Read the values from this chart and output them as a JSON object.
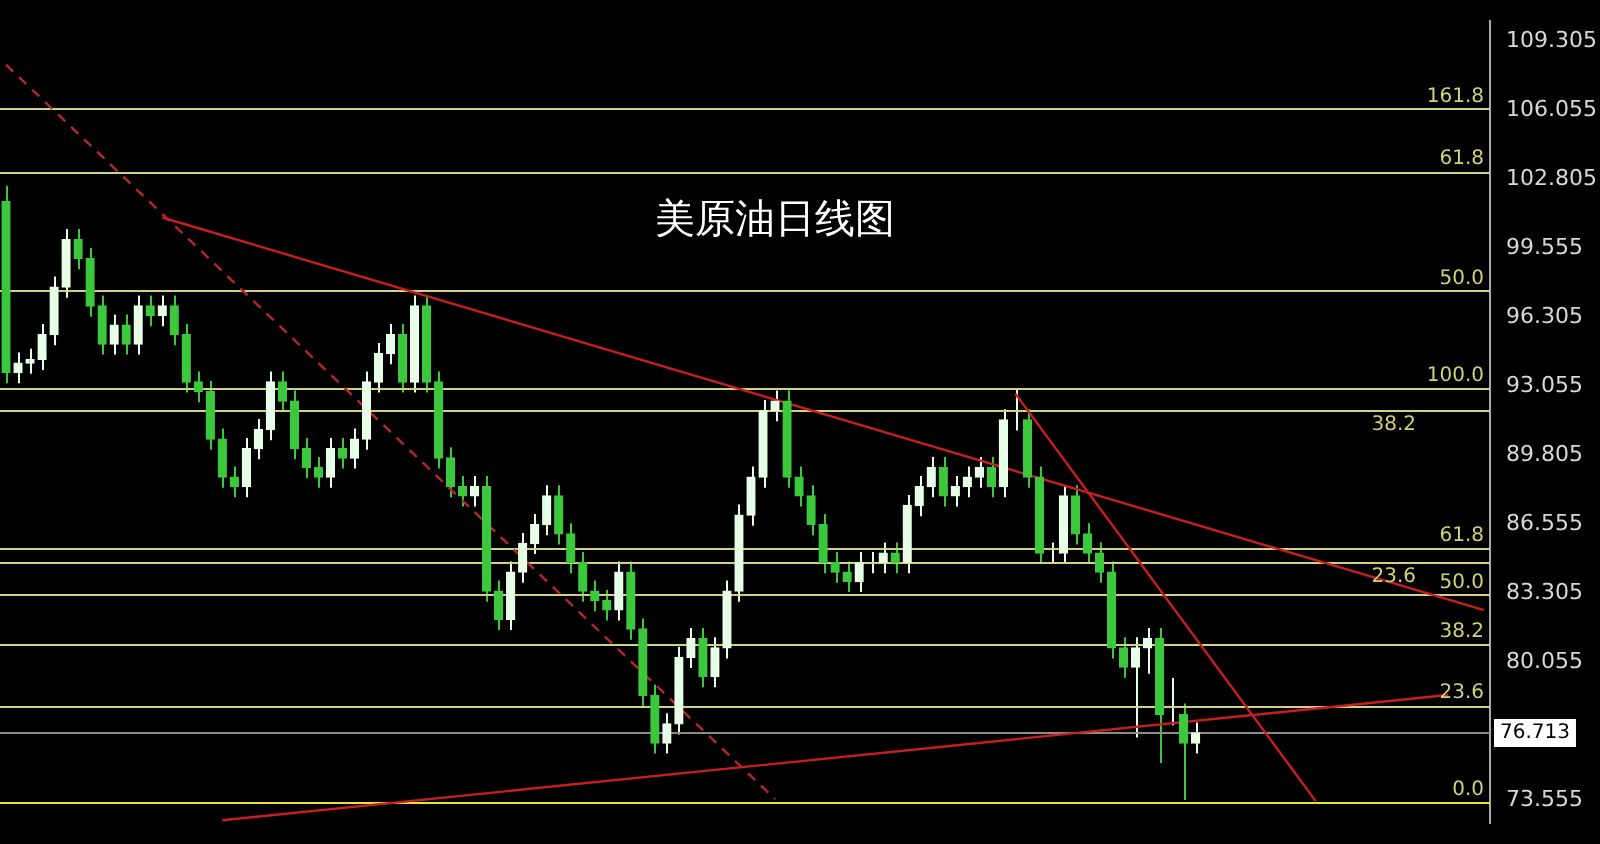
{
  "chart_data": {
    "type": "candlestick",
    "title": "美原油日线图",
    "categories": [
      null,
      null,
      null,
      null,
      null,
      null,
      null,
      null,
      null,
      null,
      null,
      null,
      null,
      null,
      null,
      null,
      null,
      null,
      null,
      null,
      null,
      null,
      null,
      null,
      null,
      null,
      null,
      null,
      null,
      null,
      null,
      null,
      null,
      null,
      null,
      null,
      null,
      null,
      null,
      null,
      null,
      null,
      null,
      null,
      null,
      null,
      null,
      null,
      null,
      null,
      null,
      null,
      null,
      null,
      null,
      null,
      null,
      null,
      null,
      null,
      null,
      null,
      null,
      null,
      null,
      null,
      null,
      null,
      null,
      null,
      null,
      null,
      null,
      null,
      null,
      null,
      null,
      null,
      null,
      null,
      null,
      null,
      null,
      null,
      null,
      null,
      null,
      null,
      null,
      null,
      null,
      null,
      null,
      null,
      null,
      null,
      null,
      null,
      null,
      null,
      null,
      null,
      null,
      null,
      null,
      null,
      null,
      null,
      null,
      null,
      null,
      null,
      null,
      null,
      null,
      null,
      null,
      null,
      null,
      null,
      null,
      null,
      null,
      null
    ],
    "ohlc": [
      [
        101.75,
        102.5,
        93.19,
        93.69
      ],
      [
        93.69,
        94.64,
        93.19,
        94.14
      ],
      [
        94.14,
        94.82,
        93.64,
        94.32
      ],
      [
        94.32,
        95.98,
        93.82,
        95.48
      ],
      [
        95.48,
        98.22,
        94.98,
        97.72
      ],
      [
        97.72,
        100.46,
        97.22,
        99.96
      ],
      [
        99.96,
        100.46,
        98.56,
        99.06
      ],
      [
        99.06,
        99.56,
        96.33,
        96.83
      ],
      [
        96.83,
        97.33,
        94.54,
        95.04
      ],
      [
        95.04,
        96.43,
        94.54,
        95.93
      ],
      [
        95.93,
        96.43,
        94.54,
        95.04
      ],
      [
        95.04,
        97.33,
        94.54,
        96.83
      ],
      [
        96.83,
        97.33,
        95.88,
        96.38
      ],
      [
        96.38,
        97.33,
        95.88,
        96.83
      ],
      [
        96.83,
        97.33,
        94.98,
        95.48
      ],
      [
        95.48,
        95.98,
        92.75,
        93.25
      ],
      [
        93.25,
        93.75,
        92.3,
        92.8
      ],
      [
        92.8,
        93.3,
        90.06,
        90.56
      ],
      [
        90.56,
        91.06,
        88.27,
        88.77
      ],
      [
        88.77,
        89.27,
        87.82,
        88.32
      ],
      [
        88.32,
        90.61,
        87.82,
        90.11
      ],
      [
        90.11,
        91.51,
        89.61,
        91.01
      ],
      [
        91.01,
        93.75,
        90.51,
        93.25
      ],
      [
        93.25,
        93.75,
        91.85,
        92.35
      ],
      [
        92.35,
        92.85,
        89.61,
        90.11
      ],
      [
        90.11,
        90.61,
        88.72,
        89.22
      ],
      [
        89.22,
        89.72,
        88.27,
        88.77
      ],
      [
        88.77,
        90.61,
        88.27,
        90.11
      ],
      [
        90.11,
        90.61,
        89.17,
        89.67
      ],
      [
        89.67,
        91.06,
        89.17,
        90.56
      ],
      [
        90.56,
        93.75,
        90.06,
        93.25
      ],
      [
        93.25,
        95.09,
        92.75,
        94.59
      ],
      [
        94.59,
        95.98,
        94.09,
        95.48
      ],
      [
        95.48,
        95.98,
        92.75,
        93.25
      ],
      [
        93.25,
        97.33,
        92.75,
        96.83
      ],
      [
        96.83,
        97.33,
        92.75,
        93.25
      ],
      [
        93.25,
        93.75,
        89.17,
        89.67
      ],
      [
        89.67,
        90.17,
        87.82,
        88.32
      ],
      [
        88.32,
        88.82,
        87.38,
        87.88
      ],
      [
        87.88,
        88.82,
        87.38,
        88.32
      ],
      [
        88.32,
        88.82,
        82.9,
        83.4
      ],
      [
        83.4,
        83.9,
        81.56,
        82.06
      ],
      [
        82.06,
        84.79,
        81.56,
        84.29
      ],
      [
        84.29,
        86.14,
        83.79,
        85.64
      ],
      [
        85.64,
        87.03,
        85.14,
        86.53
      ],
      [
        86.53,
        88.38,
        86.03,
        87.88
      ],
      [
        87.88,
        88.38,
        85.59,
        86.09
      ],
      [
        86.09,
        86.59,
        84.24,
        84.74
      ],
      [
        84.74,
        85.24,
        82.9,
        83.4
      ],
      [
        83.4,
        83.9,
        82.45,
        82.95
      ],
      [
        82.95,
        83.45,
        82.01,
        82.51
      ],
      [
        82.51,
        84.79,
        82.01,
        84.29
      ],
      [
        84.29,
        84.79,
        81.11,
        81.61
      ],
      [
        81.61,
        82.11,
        77.98,
        78.48
      ],
      [
        78.48,
        78.98,
        75.74,
        76.24
      ],
      [
        76.24,
        77.64,
        75.74,
        77.14
      ],
      [
        77.14,
        80.77,
        76.64,
        80.27
      ],
      [
        80.27,
        81.66,
        79.77,
        81.16
      ],
      [
        81.16,
        81.66,
        78.87,
        79.37
      ],
      [
        79.37,
        81.22,
        78.87,
        80.72
      ],
      [
        80.72,
        83.9,
        80.22,
        83.4
      ],
      [
        83.4,
        87.48,
        82.9,
        86.98
      ],
      [
        86.98,
        89.27,
        86.48,
        88.77
      ],
      [
        88.77,
        92.4,
        88.27,
        91.9
      ],
      [
        91.9,
        92.85,
        91.4,
        92.35
      ],
      [
        92.35,
        92.85,
        88.27,
        88.77
      ],
      [
        88.77,
        89.27,
        87.38,
        87.88
      ],
      [
        87.88,
        88.38,
        86.03,
        86.53
      ],
      [
        86.53,
        87.03,
        84.24,
        84.74
      ],
      [
        84.74,
        85.24,
        83.79,
        84.29
      ],
      [
        84.29,
        84.79,
        83.35,
        83.85
      ],
      [
        83.85,
        85.24,
        83.35,
        84.74
      ],
      [
        84.74,
        85.24,
        84.24,
        84.74
      ],
      [
        84.74,
        85.69,
        84.24,
        85.19
      ],
      [
        85.19,
        85.69,
        84.24,
        84.74
      ],
      [
        84.74,
        87.93,
        84.24,
        87.43
      ],
      [
        87.43,
        88.82,
        86.93,
        88.32
      ],
      [
        88.32,
        89.72,
        87.82,
        89.22
      ],
      [
        89.22,
        89.72,
        87.38,
        87.88
      ],
      [
        87.88,
        88.82,
        87.38,
        88.32
      ],
      [
        88.32,
        89.27,
        87.82,
        88.77
      ],
      [
        88.77,
        89.72,
        88.27,
        89.22
      ],
      [
        89.22,
        89.72,
        87.82,
        88.32
      ],
      [
        88.32,
        91.96,
        87.82,
        91.46
      ],
      [
        91.46,
        92.9,
        90.96,
        91.46
      ],
      [
        91.46,
        91.96,
        88.27,
        88.77
      ],
      [
        88.77,
        89.27,
        84.69,
        85.19
      ],
      [
        85.19,
        85.69,
        84.69,
        85.19
      ],
      [
        85.19,
        88.38,
        84.69,
        87.88
      ],
      [
        87.88,
        88.38,
        85.59,
        86.09
      ],
      [
        86.09,
        86.59,
        84.69,
        85.19
      ],
      [
        85.19,
        85.69,
        83.79,
        84.29
      ],
      [
        84.29,
        84.79,
        80.22,
        80.72
      ],
      [
        80.72,
        81.22,
        79.32,
        79.82
      ],
      [
        79.82,
        81.22,
        76.5,
        80.72
      ],
      [
        80.72,
        81.66,
        79.5,
        81.16
      ],
      [
        81.16,
        81.66,
        75.3,
        77.58
      ],
      [
        77.58,
        79.3,
        77.08,
        77.58
      ],
      [
        77.58,
        78.1,
        73.56,
        76.24
      ],
      [
        76.24,
        77.21,
        75.74,
        76.71
      ],
      null,
      null,
      null,
      null,
      null,
      null,
      null,
      null,
      null,
      null,
      null,
      null,
      null,
      null,
      null,
      null,
      null,
      null,
      null,
      null,
      null,
      null,
      null,
      null
    ],
    "colors": [
      "#3cc83c",
      "#e6ffe6",
      "#e6ffe6",
      "#e6ffe6",
      "#e6ffe6",
      "#e6ffe6",
      "#3cc83c",
      "#3cc83c",
      "#3cc83c",
      "#e6ffe6",
      "#3cc83c",
      "#e6ffe6",
      "#3cc83c",
      "#e6ffe6",
      "#3cc83c",
      "#3cc83c",
      "#3cc83c",
      "#3cc83c",
      "#3cc83c",
      "#3cc83c",
      "#e6ffe6",
      "#e6ffe6",
      "#e6ffe6",
      "#3cc83c",
      "#3cc83c",
      "#3cc83c",
      "#3cc83c",
      "#e6ffe6",
      "#3cc83c",
      "#e6ffe6",
      "#e6ffe6",
      "#e6ffe6",
      "#e6ffe6",
      "#3cc83c",
      "#e6ffe6",
      "#3cc83c",
      "#3cc83c",
      "#3cc83c",
      "#3cc83c",
      "#e6ffe6",
      "#3cc83c",
      "#3cc83c",
      "#e6ffe6",
      "#e6ffe6",
      "#e6ffe6",
      "#e6ffe6",
      "#3cc83c",
      "#3cc83c",
      "#3cc83c",
      "#3cc83c",
      "#3cc83c",
      "#e6ffe6",
      "#3cc83c",
      "#3cc83c",
      "#3cc83c",
      "#e6ffe6",
      "#e6ffe6",
      "#e6ffe6",
      "#3cc83c",
      "#e6ffe6",
      "#e6ffe6",
      "#e6ffe6",
      "#e6ffe6",
      "#e6ffe6",
      "#e6ffe6",
      "#3cc83c",
      "#3cc83c",
      "#3cc83c",
      "#3cc83c",
      "#3cc83c",
      "#3cc83c",
      "#e6ffe6",
      "#e6ffe6",
      "#e6ffe6",
      "#3cc83c",
      "#e6ffe6",
      "#e6ffe6",
      "#e6ffe6",
      "#3cc83c",
      "#e6ffe6",
      "#e6ffe6",
      "#e6ffe6",
      "#3cc83c",
      "#e6ffe6",
      "#e6ffe6",
      "#3cc83c",
      "#3cc83c",
      "#e6ffe6",
      "#e6ffe6",
      "#3cc83c",
      "#3cc83c",
      "#3cc83c",
      "#3cc83c",
      "#3cc83c",
      "#e6ffe6",
      "#e6ffe6",
      "#3cc83c",
      "#e6ffe6",
      "#3cc83c",
      "#e6ffe6",
      null,
      null,
      null,
      null,
      null,
      null,
      null,
      null,
      null,
      null,
      null,
      null,
      null,
      null,
      null,
      null,
      null,
      null,
      null,
      null,
      null,
      null,
      null,
      null
    ],
    "series": [
      {
        "type": "line",
        "color": "#c81e1e",
        "line_style": "solid",
        "values": [
          null,
          null,
          null,
          null,
          null,
          null,
          null,
          null,
          null,
          null,
          null,
          null,
          null,
          101.0,
          null,
          null,
          null,
          null,
          null,
          null,
          null,
          null,
          null,
          null,
          null,
          null,
          null,
          null,
          null,
          null,
          null,
          null,
          null,
          null,
          null,
          null,
          null,
          null,
          null,
          null,
          null,
          null,
          null,
          null,
          null,
          null,
          null,
          null,
          null,
          null,
          null,
          null,
          null,
          null,
          null,
          null,
          null,
          null,
          null,
          null,
          null,
          null,
          null,
          null,
          null,
          null,
          null,
          null,
          null,
          null,
          null,
          null,
          null,
          null,
          null,
          null,
          null,
          null,
          null,
          null,
          null,
          null,
          null,
          null,
          null,
          null,
          null,
          null,
          null,
          null,
          null,
          null,
          null,
          null,
          null,
          null,
          null,
          null,
          null,
          null,
          null,
          null,
          null,
          null,
          null,
          null,
          null,
          null,
          null,
          null,
          null,
          null,
          null,
          null,
          null,
          null,
          null,
          null,
          null,
          null,
          null,
          null,
          null,
          82.5
        ]
      },
      {
        "type": "line",
        "color": "#c81e1e",
        "line_style": "solid",
        "values": [
          null,
          null,
          null,
          null,
          null,
          null,
          null,
          null,
          null,
          null,
          null,
          null,
          null,
          null,
          null,
          null,
          null,
          null,
          null,
          null,
          null,
          null,
          null,
          null,
          null,
          null,
          null,
          null,
          null,
          null,
          null,
          null,
          null,
          null,
          null,
          null,
          null,
          null,
          null,
          null,
          null,
          null,
          null,
          null,
          null,
          null,
          null,
          null,
          null,
          null,
          null,
          null,
          null,
          null,
          null,
          null,
          null,
          null,
          null,
          null,
          null,
          null,
          null,
          null,
          null,
          null,
          null,
          null,
          null,
          null,
          null,
          null,
          null,
          null,
          null,
          null,
          null,
          null,
          null,
          null,
          null,
          null,
          null,
          null,
          92.7,
          null,
          null,
          null,
          null,
          null,
          null,
          null,
          null,
          null,
          null,
          null,
          null,
          null,
          null,
          null,
          null,
          null,
          null,
          null,
          null,
          null,
          null,
          null,
          null,
          73.5,
          null,
          null,
          null,
          null,
          null,
          null,
          null,
          null,
          null,
          null,
          null,
          null,
          null,
          null
        ]
      },
      {
        "type": "line",
        "color": "#c81e1e",
        "line_style": "solid",
        "values": [
          null,
          null,
          null,
          null,
          null,
          null,
          null,
          null,
          null,
          null,
          null,
          null,
          null,
          null,
          null,
          null,
          null,
          null,
          72.6,
          null,
          null,
          null,
          null,
          null,
          null,
          null,
          null,
          null,
          null,
          null,
          null,
          null,
          null,
          null,
          null,
          null,
          null,
          null,
          null,
          null,
          null,
          null,
          null,
          null,
          null,
          null,
          null,
          null,
          null,
          null,
          null,
          null,
          null,
          null,
          null,
          null,
          null,
          null,
          null,
          null,
          null,
          null,
          null,
          null,
          null,
          null,
          null,
          null,
          null,
          null,
          null,
          null,
          null,
          null,
          null,
          null,
          null,
          null,
          null,
          null,
          null,
          null,
          null,
          null,
          null,
          null,
          null,
          null,
          null,
          null,
          null,
          null,
          null,
          null,
          null,
          null,
          null,
          null,
          null,
          null,
          null,
          null,
          null,
          null,
          null,
          null,
          null,
          null,
          null,
          null,
          null,
          null,
          null,
          null,
          null,
          null,
          null,
          null,
          null,
          null,
          78.5,
          null,
          null,
          null
        ]
      },
      {
        "type": "line",
        "color": "#b42828",
        "line_style": "dashed",
        "values": [
          108.2,
          null,
          null,
          null,
          null,
          null,
          null,
          null,
          null,
          null,
          null,
          null,
          null,
          null,
          null,
          null,
          null,
          null,
          null,
          null,
          null,
          null,
          null,
          null,
          null,
          null,
          null,
          null,
          null,
          null,
          null,
          null,
          null,
          null,
          null,
          null,
          null,
          null,
          null,
          null,
          null,
          null,
          null,
          null,
          null,
          null,
          null,
          null,
          null,
          null,
          null,
          null,
          null,
          null,
          null,
          null,
          null,
          null,
          null,
          null,
          null,
          null,
          null,
          null,
          73.6,
          null,
          null,
          null,
          null,
          null,
          null,
          null,
          null,
          null,
          null,
          null,
          null,
          null,
          null,
          null,
          null,
          null,
          null,
          null,
          null,
          null,
          null,
          null,
          null,
          null,
          null,
          null,
          null,
          null,
          null,
          null,
          null,
          null,
          null,
          null,
          null,
          null,
          null,
          null,
          null,
          null,
          null,
          null,
          null,
          null,
          null,
          null,
          null,
          null,
          null,
          null,
          null,
          null,
          null,
          null,
          null,
          null,
          null,
          null
        ]
      }
    ],
    "ylim": [
      72.48,
      110.25
    ],
    "yticks": [
      73.555,
      80.055,
      83.305,
      86.555,
      89.805,
      93.055,
      96.305,
      99.555,
      102.805,
      106.055,
      109.305
    ],
    "ref_lines": [
      {
        "axis": "y",
        "value": 106.13,
        "color": "#d2d27a"
      },
      {
        "axis": "y",
        "value": 103.18,
        "color": "#d2d27a"
      },
      {
        "axis": "y",
        "value": 97.54,
        "color": "#d2d27a"
      },
      {
        "axis": "y",
        "value": 92.98,
        "color": "#d2d27a"
      },
      {
        "axis": "y",
        "value": 91.9,
        "color": "#d2d27a"
      },
      {
        "axis": "y",
        "value": 85.46,
        "color": "#d2d27a"
      },
      {
        "axis": "y",
        "value": 84.75,
        "color": "#d2d27a"
      },
      {
        "axis": "y",
        "value": 83.22,
        "color": "#d2d27a"
      },
      {
        "axis": "y",
        "value": 80.9,
        "color": "#d2d27a"
      },
      {
        "axis": "y",
        "value": 78.03,
        "color": "#d2d27a"
      },
      {
        "axis": "y",
        "value": 73.47,
        "color": "#e6e632"
      },
      {
        "axis": "y",
        "value": 76.713,
        "label": "76.713",
        "color": "#8c8c8c"
      }
    ],
    "annotations": [
      {
        "text": "161.8",
        "y": 106.13
      },
      {
        "text": "61.8",
        "y": 103.18
      },
      {
        "text": "50.0",
        "y": 97.54
      },
      {
        "text": "100.0",
        "y": 92.98
      },
      {
        "text": "38.2",
        "y": 91.9
      },
      {
        "text": "61.8",
        "y": 85.46
      },
      {
        "text": "23.6",
        "y": 84.75
      },
      {
        "text": "50.0",
        "y": 83.22
      },
      {
        "text": "38.2",
        "y": 80.9
      },
      {
        "text": "23.6",
        "y": 78.03
      },
      {
        "text": "0.0",
        "y": 73.47
      }
    ],
    "grid": false,
    "legend": false
  }
}
